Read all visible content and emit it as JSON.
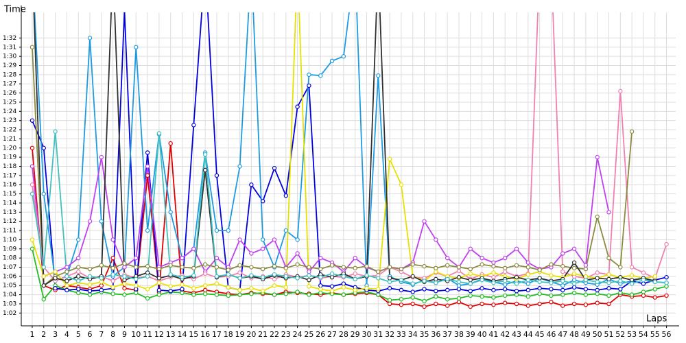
{
  "chart_data": {
    "type": "line",
    "y_label": "Time",
    "x_label": "Laps",
    "grid": true,
    "xlim": [
      0.05,
      56.8
    ],
    "ylim": [
      60.6,
      94.8
    ],
    "x": [
      1,
      2,
      3,
      4,
      5,
      6,
      7,
      8,
      9,
      10,
      11,
      12,
      13,
      14,
      15,
      16,
      17,
      18,
      19,
      20,
      21,
      22,
      23,
      24,
      25,
      26,
      27,
      28,
      29,
      30,
      31,
      32,
      33,
      34,
      35,
      36,
      37,
      38,
      39,
      40,
      41,
      42,
      43,
      44,
      45,
      46,
      47,
      48,
      49,
      50,
      51,
      52,
      53,
      54,
      55,
      56
    ],
    "xticks": [
      1,
      2,
      3,
      4,
      5,
      6,
      7,
      8,
      9,
      10,
      11,
      12,
      13,
      14,
      15,
      16,
      17,
      18,
      19,
      20,
      21,
      22,
      23,
      24,
      25,
      26,
      27,
      28,
      29,
      30,
      31,
      32,
      33,
      34,
      35,
      36,
      37,
      38,
      39,
      40,
      41,
      42,
      43,
      44,
      45,
      46,
      47,
      48,
      49,
      50,
      51,
      52,
      53,
      54,
      55,
      56
    ],
    "yticks": [
      {
        "value": 62,
        "label": "1:02"
      },
      {
        "value": 63,
        "label": "1:03"
      },
      {
        "value": 64,
        "label": "1:04"
      },
      {
        "value": 65,
        "label": "1:05"
      },
      {
        "value": 66,
        "label": "1:06"
      },
      {
        "value": 67,
        "label": "1:07"
      },
      {
        "value": 68,
        "label": "1:08"
      },
      {
        "value": 69,
        "label": "1:09"
      },
      {
        "value": 70,
        "label": "1:10"
      },
      {
        "value": 71,
        "label": "1:11"
      },
      {
        "value": 72,
        "label": "1:12"
      },
      {
        "value": 73,
        "label": "1:13"
      },
      {
        "value": 74,
        "label": "1:14"
      },
      {
        "value": 75,
        "label": "1:15"
      },
      {
        "value": 76,
        "label": "1:16"
      },
      {
        "value": 77,
        "label": "1:17"
      },
      {
        "value": 78,
        "label": "1:18"
      },
      {
        "value": 79,
        "label": "1:19"
      },
      {
        "value": 80,
        "label": "1:20"
      },
      {
        "value": 81,
        "label": "1:21"
      },
      {
        "value": 82,
        "label": "1:22"
      },
      {
        "value": 83,
        "label": "1:23"
      },
      {
        "value": 84,
        "label": "1:24"
      },
      {
        "value": 85,
        "label": "1:25"
      },
      {
        "value": 86,
        "label": "1:26"
      },
      {
        "value": 87,
        "label": "1:27"
      },
      {
        "value": 88,
        "label": "1:28"
      },
      {
        "value": 89,
        "label": "1:29"
      },
      {
        "value": 90,
        "label": "1:30"
      },
      {
        "value": 91,
        "label": "1:31"
      },
      {
        "value": 92,
        "label": "1:32"
      }
    ],
    "series": [
      {
        "color": "#e00000",
        "values": [
          80,
          65,
          64.5,
          65,
          64.8,
          64.6,
          65,
          68,
          64.7,
          64.5,
          77,
          64.3,
          80.5,
          64.4,
          64.2,
          64.5,
          64.3,
          64.1,
          64,
          64.2,
          64.1,
          64,
          64.3,
          64.2,
          64.1,
          64,
          64.2,
          64,
          64.1,
          64.2,
          64,
          63,
          62.9,
          63,
          62.7,
          63,
          62.8,
          63.2,
          62.7,
          63,
          62.9,
          63.1,
          63,
          62.8,
          63,
          63.2,
          62.8,
          63,
          62.9,
          63.1,
          63,
          64,
          63.8,
          63.9,
          63.7,
          63.9
        ]
      },
      {
        "color": "#22bb22",
        "values": [
          69,
          63.5,
          65,
          64.5,
          64.2,
          64,
          64.3,
          64.1,
          64,
          64.2,
          63.6,
          64,
          64.3,
          64.2,
          64,
          64.1,
          64,
          63.9,
          64,
          64.1,
          64.2,
          64,
          64.1,
          64.3,
          64,
          64.2,
          64.1,
          64,
          64.2,
          64.3,
          64,
          63.4,
          63.5,
          63.7,
          63.3,
          63.8,
          63.5,
          63.6,
          63.9,
          63.8,
          63.7,
          63.9,
          64,
          63.8,
          64.1,
          63.9,
          64,
          64.2,
          64,
          64.1,
          63.9,
          64.2,
          64,
          64.3,
          64.6,
          64.9
        ]
      },
      {
        "color": "#0000dd",
        "values": [
          83,
          80,
          64.7,
          64.5,
          64.6,
          64.4,
          64.5,
          64.7,
          95,
          64.6,
          79.5,
          64.5,
          64.4,
          64.6,
          82.5,
          100,
          77,
          64.8,
          64.5,
          76,
          74.2,
          77.8,
          74.8,
          84.5,
          86.8,
          65,
          64.9,
          65.2,
          64.8,
          64.5,
          64.4,
          64.7,
          64.5,
          64.3,
          64.6,
          64.4,
          64.5,
          64.6,
          64.4,
          64.7,
          64.5,
          64.6,
          64.4,
          64.5,
          64.7,
          64.6,
          64.5,
          64.8,
          64.6,
          64.5,
          64.7,
          64.6,
          65.5,
          65.2,
          65.6,
          65.9
        ]
      },
      {
        "color": "#1e9be0",
        "values": [
          100,
          75,
          65.5,
          66,
          70,
          92,
          72,
          66,
          67,
          91,
          71,
          81.5,
          73,
          68,
          69,
          79.5,
          71,
          71,
          78,
          100,
          70,
          67,
          71,
          70,
          88,
          87.9,
          89.5,
          90,
          100,
          65,
          87.9,
          66,
          65.4,
          65.1,
          65.6,
          65.3,
          65.8,
          65,
          65.2,
          65.7,
          65.4,
          65.1,
          65.5,
          65.2,
          65.8,
          65.4,
          65,
          65.6,
          65.3,
          65.1,
          65.7,
          65.2,
          65.5,
          65.8,
          65.4,
          65.3
        ]
      },
      {
        "color": "#c040f0",
        "values": [
          78,
          66,
          66.5,
          67,
          68,
          72,
          79,
          70,
          67,
          68,
          78,
          67,
          67.5,
          68,
          69,
          66.5,
          68,
          67,
          70,
          68.5,
          69,
          70,
          67,
          68.5,
          66.5,
          68,
          67.5,
          66.5,
          68,
          67,
          66.5,
          67,
          66.8,
          67.5,
          72,
          70,
          68,
          67,
          69,
          68,
          67.5,
          68,
          69,
          67.5,
          66.8,
          67,
          68.5,
          69,
          67.2,
          79,
          73,
          null,
          null,
          null,
          null,
          null
        ]
      },
      {
        "color": "#f080b0",
        "values": [
          76,
          67,
          65.5,
          66,
          66.5,
          65.8,
          66,
          65.5,
          66.2,
          65.8,
          66,
          65.5,
          65.9,
          66.1,
          65.7,
          66.3,
          65.9,
          66,
          66.4,
          65.8,
          66,
          65.7,
          66.2,
          65.9,
          66.1,
          65.8,
          66,
          65.9,
          66.3,
          66,
          66.1,
          67,
          66.5,
          65.9,
          65.8,
          66.4,
          66,
          66.6,
          65.7,
          66.2,
          65.9,
          66.5,
          66,
          66.3,
          100,
          100,
          66.5,
          66,
          65.8,
          66.4,
          66.2,
          86.2,
          67,
          66.4,
          65.8,
          69.5
        ]
      },
      {
        "color": "#e8e000",
        "values": [
          70,
          66,
          66.5,
          65,
          65.3,
          65.1,
          65.4,
          64.8,
          65.2,
          65,
          64.6,
          65.3,
          64.9,
          65.1,
          64.7,
          65,
          65.2,
          64.8,
          64.5,
          64.7,
          64.4,
          65,
          64.8,
          100,
          64.9,
          64.6,
          64.4,
          64.8,
          64.5,
          64.7,
          64.6,
          78.8,
          76,
          66,
          65.5,
          66.5,
          66,
          65.8,
          66.3,
          66,
          66.4,
          66,
          65.7,
          66.2,
          66.5,
          66.1,
          65.9,
          66.3,
          66,
          65.8,
          66.2,
          65.9,
          66.1,
          65.8,
          66,
          null
        ]
      },
      {
        "color": "#8a8a40",
        "values": [
          91,
          65,
          66,
          66.5,
          67,
          66.8,
          67.2,
          66.9,
          67.4,
          67,
          67.1,
          66.8,
          67.2,
          67,
          66.9,
          67.3,
          67,
          66.7,
          67.2,
          67,
          66.8,
          67.1,
          66.9,
          67.3,
          67,
          66.8,
          67.2,
          67,
          66.9,
          67.1,
          66.5,
          67,
          66.8,
          67.3,
          67.1,
          66.9,
          67.2,
          67,
          66.8,
          67.3,
          67.1,
          66.9,
          67.2,
          67,
          66.7,
          67.3,
          67.1,
          66.9,
          66.8,
          72.5,
          68,
          67,
          81.8,
          null,
          null,
          null
        ]
      },
      {
        "color": "#303030",
        "values": [
          100,
          65,
          65.8,
          65.5,
          66,
          65.7,
          66,
          100,
          65.6,
          66,
          66.4,
          65.8,
          66.1,
          65.7,
          66,
          77.6,
          65.9,
          66.2,
          65.8,
          66,
          65.7,
          66.1,
          65.8,
          66,
          65.6,
          66.2,
          65.9,
          66.3,
          65.7,
          66,
          100,
          65.8,
          65.6,
          66,
          65.4,
          65.7,
          65.5,
          65.9,
          65.6,
          65.8,
          65.5,
          65.7,
          65.9,
          65.6,
          65.8,
          65.5,
          65.7,
          67.5,
          65.6,
          65.8,
          65.7,
          65.9,
          65.6,
          65.8,
          65.5,
          null
        ]
      },
      {
        "color": "#40c0c0",
        "values": [
          75,
          67,
          81.8,
          66,
          65.5,
          66,
          65.8,
          66.2,
          66,
          65.7,
          66,
          81.6,
          66.2,
          65.9,
          66.1,
          79.3,
          66,
          66.2,
          65.8,
          66.1,
          65.9,
          66.2,
          66,
          65.8,
          66.1,
          65.9,
          66.3,
          66,
          65.7,
          66.1,
          65.8,
          65.4,
          65.6,
          65.2,
          65.5,
          65.3,
          65.7,
          65.4,
          65.2,
          65.6,
          65.3,
          65.5,
          65.2,
          65.6,
          65.4,
          65.3,
          65.5,
          65.2,
          65.6,
          65.4,
          65.3,
          65.5,
          65.2,
          65.6,
          65.4,
          65.3
        ]
      }
    ]
  }
}
